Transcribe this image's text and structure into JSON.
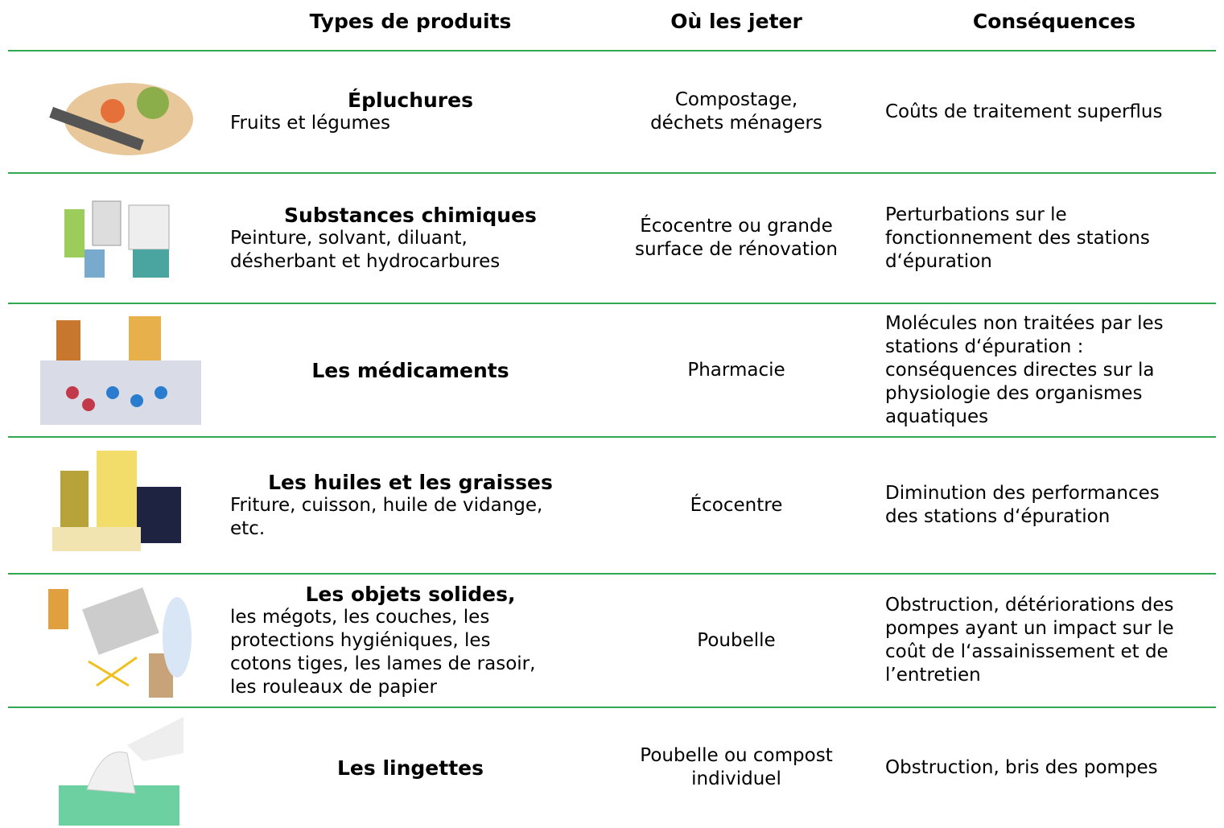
{
  "header": {
    "type": "Types de produits",
    "where": "Où les jeter",
    "consequences": "Conséquences"
  },
  "rows": [
    {
      "title": "Épluchures",
      "detail": [
        "Fruits et légumes"
      ],
      "where": [
        "Compostage,",
        "déchets ménagers"
      ],
      "consequences": [
        "Coûts de traitement superflus"
      ]
    },
    {
      "title": "Substances chimiques",
      "detail": [
        "Peinture, solvant, diluant,",
        "désherbant et hydrocarbures"
      ],
      "where": [
        "Écocentre ou grande",
        "surface de rénovation"
      ],
      "consequences": [
        "Perturbations sur le",
        "fonctionnement des stations",
        "d‘épuration"
      ]
    },
    {
      "title": "Les médicaments",
      "detail": [],
      "where": [
        "Pharmacie"
      ],
      "consequences": [
        "Molécules non traitées par les",
        "stations d‘épuration :",
        "conséquences directes sur la",
        "physiologie des organismes",
        "aquatiques"
      ]
    },
    {
      "title": "Les huiles et les graisses",
      "detail": [
        "Friture, cuisson, huile de vidange,",
        "etc."
      ],
      "where": [
        "Écocentre"
      ],
      "consequences": [
        "Diminution des performances",
        "des stations d‘épuration"
      ]
    },
    {
      "title": "Les objets solides,",
      "detail": [
        "les mégots, les couches, les",
        "protections hygiéniques, les",
        "cotons tiges, les lames de rasoir,",
        "les rouleaux de papier"
      ],
      "where": [
        "Poubelle"
      ],
      "consequences": [
        "Obstruction, détériorations des",
        "pompes ayant un impact sur le",
        "coût de l‘assainissement et de",
        "l’entretien"
      ]
    },
    {
      "title": "Les lingettes",
      "detail": [],
      "where": [
        "Poubelle ou compost",
        "individuel"
      ],
      "consequences": [
        "Obstruction, bris des pompes"
      ]
    }
  ]
}
